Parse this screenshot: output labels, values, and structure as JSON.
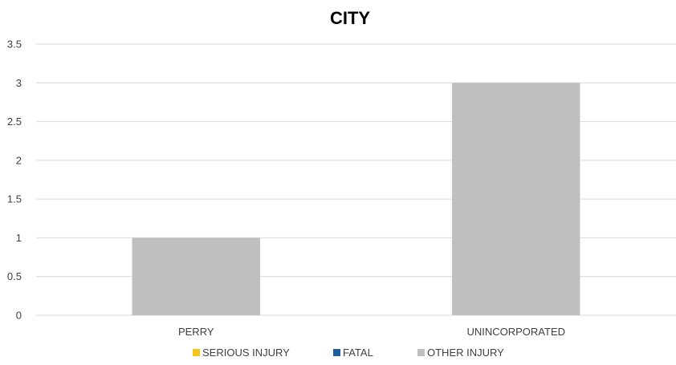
{
  "chart_data": {
    "type": "bar",
    "title": "CITY",
    "categories": [
      "PERRY",
      "UNINCORPORATED"
    ],
    "series": [
      {
        "name": "SERIOUS INJURY",
        "color": "#f5c518",
        "values": [
          0,
          0
        ]
      },
      {
        "name": "FATAL",
        "color": "#1f5fa0",
        "values": [
          0,
          0
        ]
      },
      {
        "name": "OTHER INJURY",
        "color": "#bfbfbf",
        "values": [
          1,
          3
        ]
      }
    ],
    "ylim": [
      0,
      3.5
    ],
    "yticks": [
      "0",
      "0.5",
      "1",
      "1.5",
      "2",
      "2.5",
      "3",
      "3.5"
    ],
    "xlabel": "",
    "ylabel": "",
    "grid": true,
    "legend_position": "bottom"
  }
}
